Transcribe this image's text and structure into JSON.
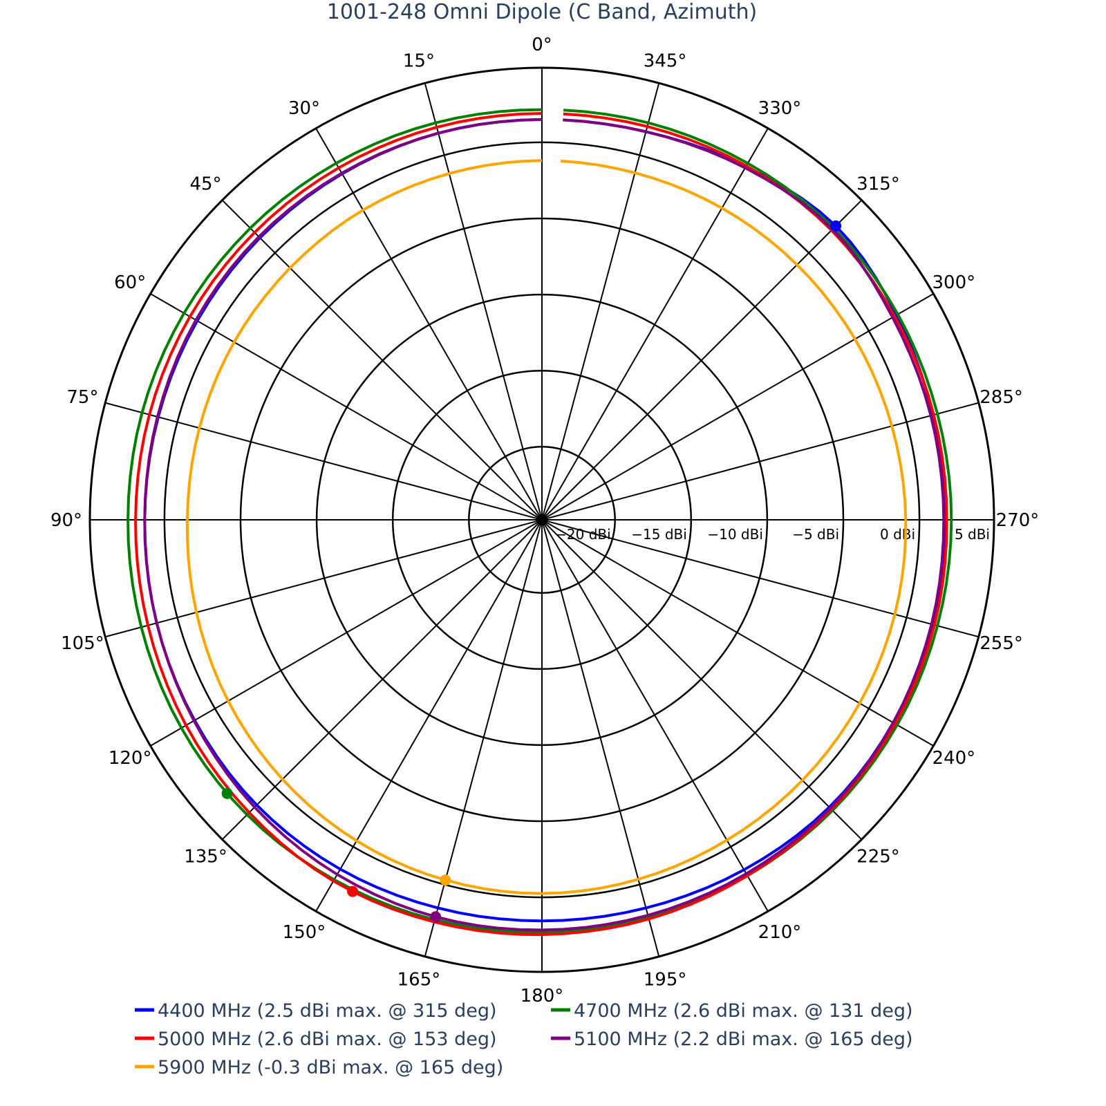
{
  "chart_data": {
    "type": "line",
    "subtype": "polar",
    "title": "1001-248 Omni Dipole (C Band, Azimuth)",
    "angular_axis": {
      "direction": "counterclockwise",
      "rotation": "0 at top",
      "tick_step_deg": 15,
      "tick_labels": [
        "0°",
        "15°",
        "30°",
        "45°",
        "60°",
        "75°",
        "90°",
        "105°",
        "120°",
        "135°",
        "150°",
        "165°",
        "180°",
        "195°",
        "210°",
        "225°",
        "240°",
        "255°",
        "270°",
        "285°",
        "300°",
        "315°",
        "330°",
        "345°"
      ]
    },
    "radial_axis": {
      "range": [
        -24.8,
        4.9
      ],
      "unit": "dBi",
      "ticks": [
        -20,
        -15,
        -10,
        -5,
        0,
        5
      ],
      "tick_labels": [
        "−20 dBi",
        "−15 dBi",
        "−10 dBi",
        "−5 dBi",
        "0 dBi",
        "5 dBi"
      ]
    },
    "grid": true,
    "legend_position": "bottom",
    "theta": [
      0,
      15,
      30,
      45,
      60,
      75,
      90,
      105,
      120,
      135,
      150,
      165,
      180,
      195,
      210,
      225,
      240,
      255,
      270,
      285,
      300,
      315,
      330,
      345
    ],
    "series": [
      {
        "name": "4400 MHz (2.5 dBi max. @ 315 deg)",
        "color": "#0000ff",
        "values": [
          1.5,
          1.5,
          1.45,
          1.4,
          1.35,
          1.3,
          1.3,
          1.4,
          1.55,
          1.7,
          1.7,
          1.6,
          1.55,
          1.6,
          1.75,
          1.9,
          1.85,
          1.75,
          1.7,
          1.8,
          2.1,
          2.5,
          2.0,
          1.6
        ],
        "max": {
          "theta": 315,
          "value": 2.5
        }
      },
      {
        "name": "4700 MHz (2.6 dBi max. @ 131 deg)",
        "color": "#008000",
        "values": [
          2.15,
          2.2,
          2.25,
          2.3,
          2.35,
          2.4,
          2.4,
          2.45,
          2.55,
          2.6,
          2.5,
          2.4,
          2.3,
          2.25,
          2.2,
          2.2,
          2.15,
          2.1,
          2.1,
          2.1,
          2.2,
          2.3,
          2.25,
          2.2
        ],
        "max": {
          "theta": 131,
          "value": 2.6
        }
      },
      {
        "name": "5000 MHz (2.6 dBi max. @ 153 deg)",
        "color": "#ff0000",
        "values": [
          1.9,
          1.9,
          1.9,
          1.9,
          1.9,
          1.9,
          1.9,
          2.0,
          2.2,
          2.4,
          2.6,
          2.55,
          2.45,
          2.35,
          2.2,
          2.1,
          2.0,
          1.9,
          1.8,
          1.85,
          1.95,
          2.1,
          2.05,
          1.95
        ],
        "max": {
          "theta": 153,
          "value": 2.6
        }
      },
      {
        "name": "5100 MHz (2.2 dBi max. @ 165 deg)",
        "color": "#800080",
        "values": [
          1.5,
          1.5,
          1.5,
          1.5,
          1.45,
          1.35,
          1.3,
          1.4,
          1.6,
          1.9,
          2.1,
          2.2,
          2.15,
          2.1,
          2.05,
          2.0,
          1.85,
          1.7,
          1.6,
          1.65,
          1.8,
          2.2,
          1.9,
          1.6
        ],
        "max": {
          "theta": 165,
          "value": 2.2
        }
      },
      {
        "name": "5900 MHz (-0.3 dBi max. @ 165 deg)",
        "color": "#ffa500",
        "values": [
          -1.2,
          -1.25,
          -1.3,
          -1.4,
          -1.45,
          -1.5,
          -1.5,
          -1.3,
          -1.0,
          -0.7,
          -0.45,
          -0.3,
          -0.25,
          -0.35,
          -0.5,
          -0.6,
          -0.7,
          -0.8,
          -0.9,
          -1.0,
          -1.05,
          -1.1,
          -1.15,
          -1.2
        ],
        "max": {
          "theta": 165,
          "value": -0.3
        }
      }
    ]
  }
}
